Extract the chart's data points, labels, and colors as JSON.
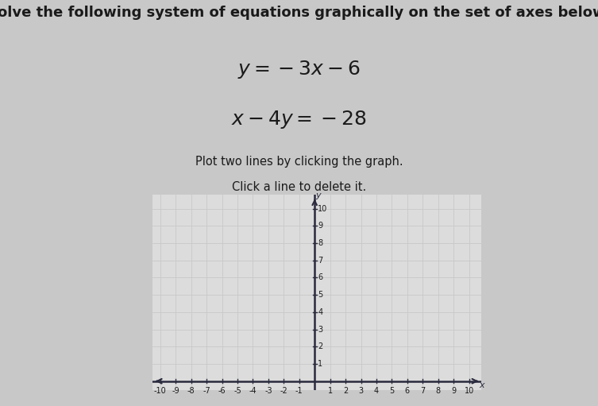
{
  "title": "Solve the following system of equations graphically on the set of axes below.",
  "eq1_latex": "$y = -3x - 6$",
  "eq2_latex": "$x - 4y = -28$",
  "instruction1": "Plot two lines by clicking the graph.",
  "instruction2": "Click a line to delete it.",
  "xlim": [
    -10,
    10
  ],
  "ylim": [
    0,
    10
  ],
  "xticks": [
    -10,
    -9,
    -8,
    -7,
    -6,
    -5,
    -4,
    -3,
    -2,
    -1,
    1,
    2,
    3,
    4,
    5,
    6,
    7,
    8,
    9,
    10
  ],
  "yticks": [
    1,
    2,
    3,
    4,
    5,
    6,
    7,
    8,
    9,
    10
  ],
  "grid_color": "#c8c8c8",
  "grid_bg": "#dcdcdc",
  "axis_color": "#2a2a3e",
  "text_color": "#1a1a1a",
  "fig_bg": "#c8c8c8",
  "title_fontsize": 13,
  "eq_fontsize": 18,
  "instr_fontsize": 10.5,
  "tick_fontsize": 7
}
